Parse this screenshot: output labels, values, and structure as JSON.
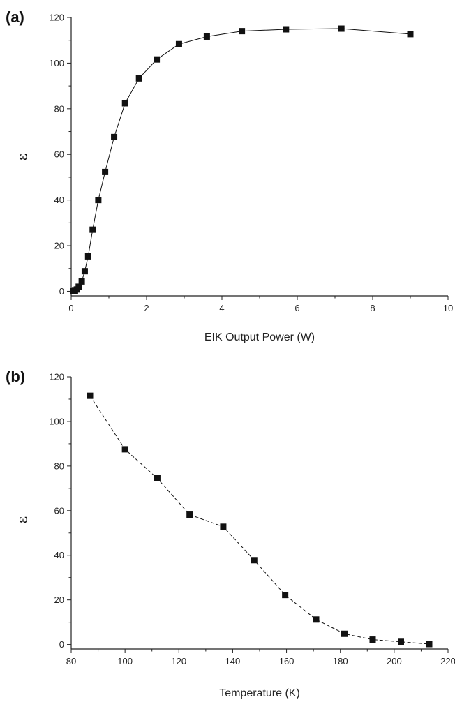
{
  "chart_data": [
    {
      "type": "line",
      "panel_label": "(a)",
      "title": "",
      "xlabel": "EIK Output Power (W)",
      "ylabel": "ε",
      "xlim": [
        0,
        10
      ],
      "ylim": [
        -2,
        120
      ],
      "xticks": [
        "0",
        "2",
        "4",
        "6",
        "8",
        "10"
      ],
      "yticks": [
        "0",
        "20",
        "40",
        "60",
        "80",
        "100",
        "120"
      ],
      "line_style": "solid",
      "marker": "square",
      "color": "#111111",
      "series": [
        {
          "x": [
            0.05,
            0.1,
            0.15,
            0.2,
            0.28,
            0.36,
            0.45,
            0.57,
            0.72,
            0.9,
            1.14,
            1.43,
            1.8,
            2.27,
            2.86,
            3.6,
            4.53,
            5.7,
            7.17,
            9.0
          ],
          "y": [
            0,
            0.2,
            0.8,
            2,
            4.3,
            8.8,
            15.3,
            27,
            40,
            52.3,
            67.6,
            82.4,
            93.3,
            101.6,
            108.3,
            111.6,
            114,
            114.8,
            115.1,
            112.7
          ]
        }
      ]
    },
    {
      "type": "line",
      "panel_label": "(b)",
      "title": "",
      "xlabel": "Temperature (K)",
      "ylabel": "ε",
      "xlim": [
        80,
        220
      ],
      "ylim": [
        -2,
        120
      ],
      "xticks": [
        "80",
        "100",
        "120",
        "140",
        "160",
        "180",
        "200",
        "220"
      ],
      "yticks": [
        "0",
        "20",
        "40",
        "60",
        "80",
        "100",
        "120"
      ],
      "line_style": "dashed",
      "marker": "square",
      "color": "#111111",
      "series": [
        {
          "x": [
            87,
            100,
            112,
            124,
            136.5,
            148,
            159.5,
            171,
            181.5,
            192,
            202.5,
            213
          ],
          "y": [
            111.5,
            87.5,
            74.5,
            58.2,
            52.8,
            37.8,
            22.2,
            11.2,
            4.8,
            2.2,
            1.2,
            0.2
          ]
        }
      ]
    }
  ]
}
